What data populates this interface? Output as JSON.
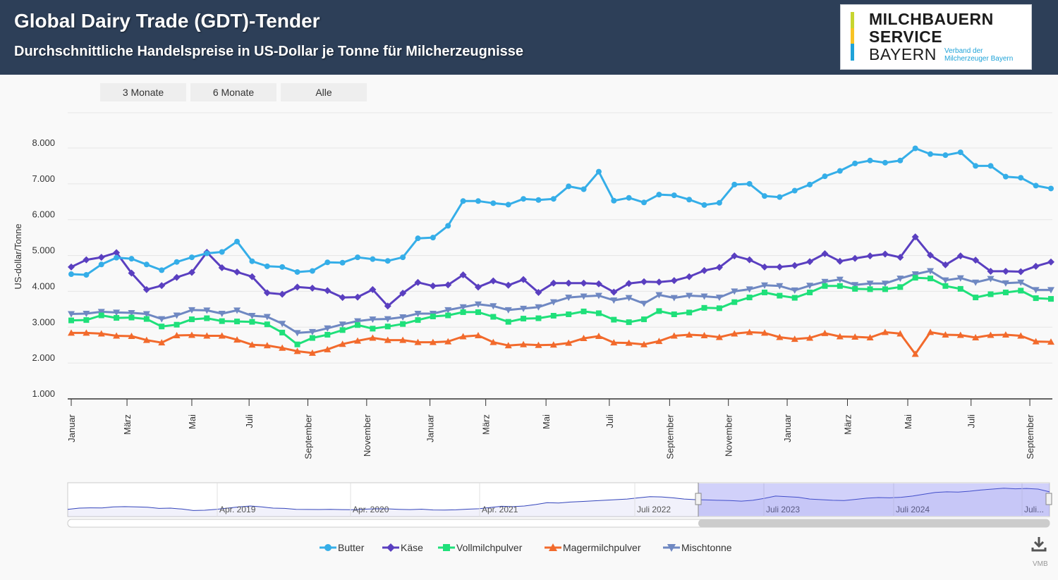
{
  "header": {
    "title": "Global Dairy Trade (GDT)-Tender",
    "subtitle": "Durchschnittliche Handelspreise in US-Dollar je Tonne für Milcherzeugnisse"
  },
  "logo": {
    "line1": "MILCHBAUERN",
    "line2": "SERVICE",
    "line3": "BAYERN",
    "tagline1": "Verband der",
    "tagline2": "Milcherzeuger Bayern"
  },
  "range_selector": {
    "buttons": [
      "3 Monate",
      "6 Monate",
      "Alle"
    ]
  },
  "colors": {
    "butter": "#35aee8",
    "kaese": "#5a3fc0",
    "vollmilchpulver": "#1fe07a",
    "magermilchpulver": "#f26a2c",
    "mischtonne": "#6f88c2",
    "header_bg": "#2d3f58"
  },
  "chart_data": {
    "type": "line",
    "title": "Global Dairy Trade (GDT)-Tender",
    "subtitle": "Durchschnittliche Handelspreise in US-Dollar je Tonne für Milcherzeugnisse",
    "xlabel": "",
    "ylabel": "US-dollar/Tonne",
    "ylim": [
      1000,
      8000
    ],
    "y_ticks": [
      "1.000",
      "2.000",
      "3.000",
      "4.000",
      "5.000",
      "6.000",
      "7.000",
      "8.000"
    ],
    "x_index_range": [
      0,
      64
    ],
    "x_ticks": [
      {
        "label": "Januar",
        "index": 0
      },
      {
        "label": "März",
        "index": 3.7
      },
      {
        "label": "Mai",
        "index": 8
      },
      {
        "label": "Juli",
        "index": 11.8
      },
      {
        "label": "September",
        "index": 15.7
      },
      {
        "label": "November",
        "index": 19.6
      },
      {
        "label": "Januar",
        "index": 23.8
      },
      {
        "label": "März",
        "index": 27.5
      },
      {
        "label": "Mai",
        "index": 31.5
      },
      {
        "label": "Juli",
        "index": 35.7
      },
      {
        "label": "September",
        "index": 39.7
      },
      {
        "label": "November",
        "index": 43.6
      },
      {
        "label": "Januar",
        "index": 47.5
      },
      {
        "label": "März",
        "index": 51.5
      },
      {
        "label": "Mai",
        "index": 55.5
      },
      {
        "label": "Juli",
        "index": 59.7
      },
      {
        "label": "September",
        "index": 63.6
      }
    ],
    "series": [
      {
        "name": "Butter",
        "marker": "circle",
        "values": [
          4480,
          4460,
          4750,
          4940,
          4910,
          4750,
          4590,
          4820,
          4950,
          5060,
          5100,
          5390,
          4840,
          4700,
          4680,
          4540,
          4570,
          4810,
          4800,
          4950,
          4900,
          4850,
          4950,
          5480,
          5500,
          5830,
          6520,
          6520,
          6460,
          6420,
          6580,
          6550,
          6580,
          6930,
          6850,
          7340,
          6530,
          6610,
          6480,
          6700,
          6680,
          6560,
          6410,
          6470,
          6980,
          7000,
          6660,
          6630,
          6810,
          6980,
          7210,
          7360,
          7570,
          7650,
          7590,
          7650,
          7990,
          7830,
          7800,
          7880,
          7500,
          7500,
          7200,
          7170,
          6950,
          6870
        ]
      },
      {
        "name": "Käse",
        "marker": "diamond",
        "values": [
          4680,
          4880,
          4950,
          5080,
          4510,
          4050,
          4160,
          4390,
          4530,
          5090,
          4660,
          4540,
          4410,
          3960,
          3920,
          4120,
          4090,
          4020,
          3830,
          3840,
          4050,
          3590,
          3950,
          4250,
          4150,
          4180,
          4460,
          4120,
          4290,
          4170,
          4330,
          3970,
          4230,
          4230,
          4230,
          4210,
          3980,
          4220,
          4270,
          4260,
          4300,
          4410,
          4580,
          4670,
          4990,
          4880,
          4680,
          4680,
          4720,
          4830,
          5050,
          4840,
          4920,
          4990,
          5040,
          4950,
          5520,
          5010,
          4740,
          4990,
          4870,
          4560,
          4560,
          4550,
          4700,
          4820
        ]
      },
      {
        "name": "Vollmilchpulver",
        "marker": "square",
        "values": [
          3190,
          3200,
          3330,
          3260,
          3270,
          3230,
          3020,
          3070,
          3220,
          3250,
          3170,
          3160,
          3150,
          3080,
          2850,
          2520,
          2700,
          2790,
          2920,
          3060,
          2960,
          3020,
          3090,
          3200,
          3300,
          3330,
          3420,
          3420,
          3290,
          3150,
          3240,
          3250,
          3320,
          3360,
          3440,
          3390,
          3210,
          3140,
          3220,
          3450,
          3360,
          3410,
          3540,
          3530,
          3700,
          3830,
          3970,
          3880,
          3820,
          3970,
          4150,
          4150,
          4070,
          4060,
          4060,
          4120,
          4380,
          4360,
          4150,
          4070,
          3830,
          3920,
          3970,
          4020,
          3810,
          3790
        ]
      },
      {
        "name": "Magermilchpulver",
        "marker": "triangle",
        "values": [
          2840,
          2840,
          2820,
          2760,
          2750,
          2640,
          2570,
          2770,
          2780,
          2760,
          2760,
          2650,
          2510,
          2490,
          2420,
          2330,
          2280,
          2380,
          2530,
          2620,
          2700,
          2640,
          2640,
          2580,
          2580,
          2600,
          2740,
          2770,
          2580,
          2490,
          2520,
          2500,
          2510,
          2560,
          2690,
          2750,
          2570,
          2560,
          2520,
          2610,
          2760,
          2790,
          2770,
          2720,
          2820,
          2860,
          2840,
          2720,
          2670,
          2700,
          2830,
          2740,
          2730,
          2710,
          2860,
          2820,
          2250,
          2860,
          2790,
          2780,
          2710,
          2780,
          2790,
          2760,
          2600,
          2590
        ]
      },
      {
        "name": "Mischtonne",
        "marker": "triangle-down",
        "values": [
          3370,
          3380,
          3430,
          3410,
          3400,
          3370,
          3230,
          3330,
          3480,
          3470,
          3380,
          3470,
          3320,
          3290,
          3100,
          2840,
          2870,
          2970,
          3080,
          3170,
          3220,
          3230,
          3280,
          3380,
          3380,
          3480,
          3560,
          3640,
          3590,
          3480,
          3520,
          3560,
          3700,
          3830,
          3860,
          3880,
          3750,
          3820,
          3660,
          3900,
          3820,
          3880,
          3860,
          3830,
          4000,
          4060,
          4170,
          4150,
          4030,
          4160,
          4270,
          4330,
          4180,
          4220,
          4220,
          4360,
          4480,
          4570,
          4310,
          4370,
          4250,
          4350,
          4230,
          4250,
          4040,
          4040
        ]
      }
    ],
    "legend_position": "bottom"
  },
  "navigator": {
    "labels": [
      "Apr. 2019",
      "Apr. 2020",
      "Apr. 2021",
      "Juli 2022",
      "Juli 2023",
      "Juli 2024",
      "Juli..."
    ],
    "values": [
      4500,
      4700,
      4750,
      4720,
      4900,
      4950,
      4900,
      4850,
      4650,
      4700,
      4550,
      4300,
      4350,
      4500,
      4700,
      4900,
      5050,
      4900,
      4700,
      4650,
      4500,
      4480,
      4470,
      4500,
      4460,
      4430,
      4520,
      4600,
      4580,
      4500,
      4450,
      4530,
      4400,
      4380,
      4420,
      4530,
      4600,
      4800,
      5000,
      4950,
      5050,
      5300,
      5600,
      5550,
      5700,
      5800,
      5900,
      6000,
      6100,
      6200,
      6400,
      6600,
      6550,
      6400,
      6200,
      6100,
      6050,
      6000,
      5950,
      5850,
      6000,
      6300,
      6700,
      6600,
      6500,
      6200,
      6100,
      6000,
      5950,
      6150,
      6350,
      6450,
      6400,
      6500,
      6700,
      7000,
      7300,
      7400,
      7350,
      7500,
      7700,
      7850,
      8000,
      7900,
      7950,
      7850,
      7400
    ]
  },
  "credit": "VMB"
}
